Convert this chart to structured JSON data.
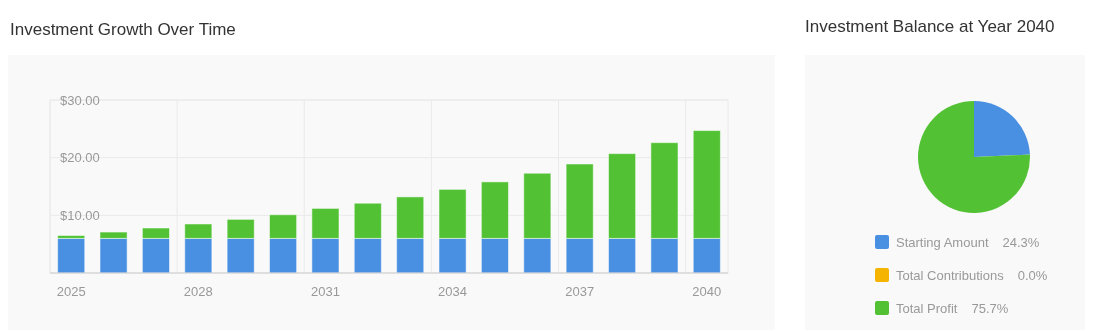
{
  "chart_data": [
    {
      "type": "bar",
      "title": "Investment Growth Over Time",
      "stacked": true,
      "grid": true,
      "categories": [
        "2025",
        null,
        null,
        "2028",
        null,
        null,
        "2031",
        null,
        null,
        "2034",
        null,
        null,
        "2037",
        null,
        null,
        "2040"
      ],
      "series": [
        {
          "color": "#4a90e2",
          "values": [
            6,
            6,
            6,
            6,
            6,
            6,
            6,
            6,
            6,
            6,
            6,
            6,
            6,
            6,
            6,
            6
          ]
        },
        {
          "color": "#52c234",
          "values": [
            0.5,
            1.1,
            1.8,
            2.5,
            3.3,
            4.1,
            5.2,
            6.1,
            7.2,
            8.5,
            9.8,
            11.3,
            12.9,
            14.7,
            16.6,
            18.7
          ]
        }
      ],
      "ylim": [
        0,
        30
      ],
      "yticks": [
        {
          "value": 0,
          "label": null
        },
        {
          "value": 10,
          "label": "$10.00"
        },
        {
          "value": 20,
          "label": "$20.00"
        },
        {
          "value": 30,
          "label": "$30.00"
        }
      ]
    },
    {
      "type": "pie",
      "title": "Investment Balance at Year 2040",
      "legend": "bottom",
      "categories": [
        "Starting Amount",
        "Total Contributions",
        "Total Profit"
      ],
      "values": [
        24.3,
        0.0,
        75.7
      ],
      "colors": [
        "#4a90e2",
        "#f4b400",
        "#52c234"
      ],
      "value_labels": [
        "24.3%",
        "0.0%",
        "75.7%"
      ]
    }
  ]
}
